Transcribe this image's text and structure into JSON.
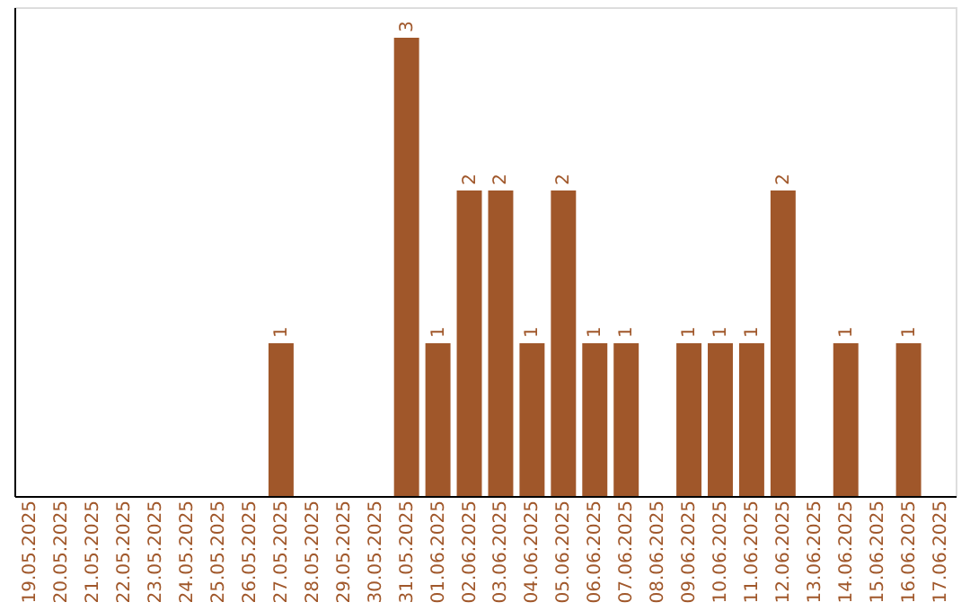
{
  "chart_data": {
    "type": "bar",
    "categories": [
      "19.05.2025",
      "20.05.2025",
      "21.05.2025",
      "22.05.2025",
      "23.05.2025",
      "24.05.2025",
      "25.05.2025",
      "26.05.2025",
      "27.05.2025",
      "28.05.2025",
      "29.05.2025",
      "30.05.2025",
      "31.05.2025",
      "01.06.2025",
      "02.06.2025",
      "03.06.2025",
      "04.06.2025",
      "05.06.2025",
      "06.06.2025",
      "07.06.2025",
      "08.06.2025",
      "09.06.2025",
      "10.06.2025",
      "11.06.2025",
      "12.06.2025",
      "13.06.2025",
      "14.06.2025",
      "15.06.2025",
      "16.06.2025",
      "17.06.2025"
    ],
    "values": [
      0,
      0,
      0,
      0,
      0,
      0,
      0,
      0,
      1,
      0,
      0,
      0,
      3,
      1,
      2,
      2,
      1,
      2,
      1,
      1,
      0,
      1,
      1,
      1,
      2,
      0,
      1,
      0,
      1,
      0
    ],
    "value_labels": [
      null,
      null,
      null,
      null,
      null,
      null,
      null,
      null,
      "1",
      null,
      null,
      null,
      "3",
      "1",
      "2",
      "2",
      "1",
      "2",
      "1",
      "1",
      null,
      "1",
      "1",
      "1",
      "2",
      null,
      "1",
      null,
      "1",
      null
    ],
    "color": "#a0572a",
    "ylim": [
      0,
      3.2
    ],
    "tick_labels": "x",
    "grid": false
  }
}
